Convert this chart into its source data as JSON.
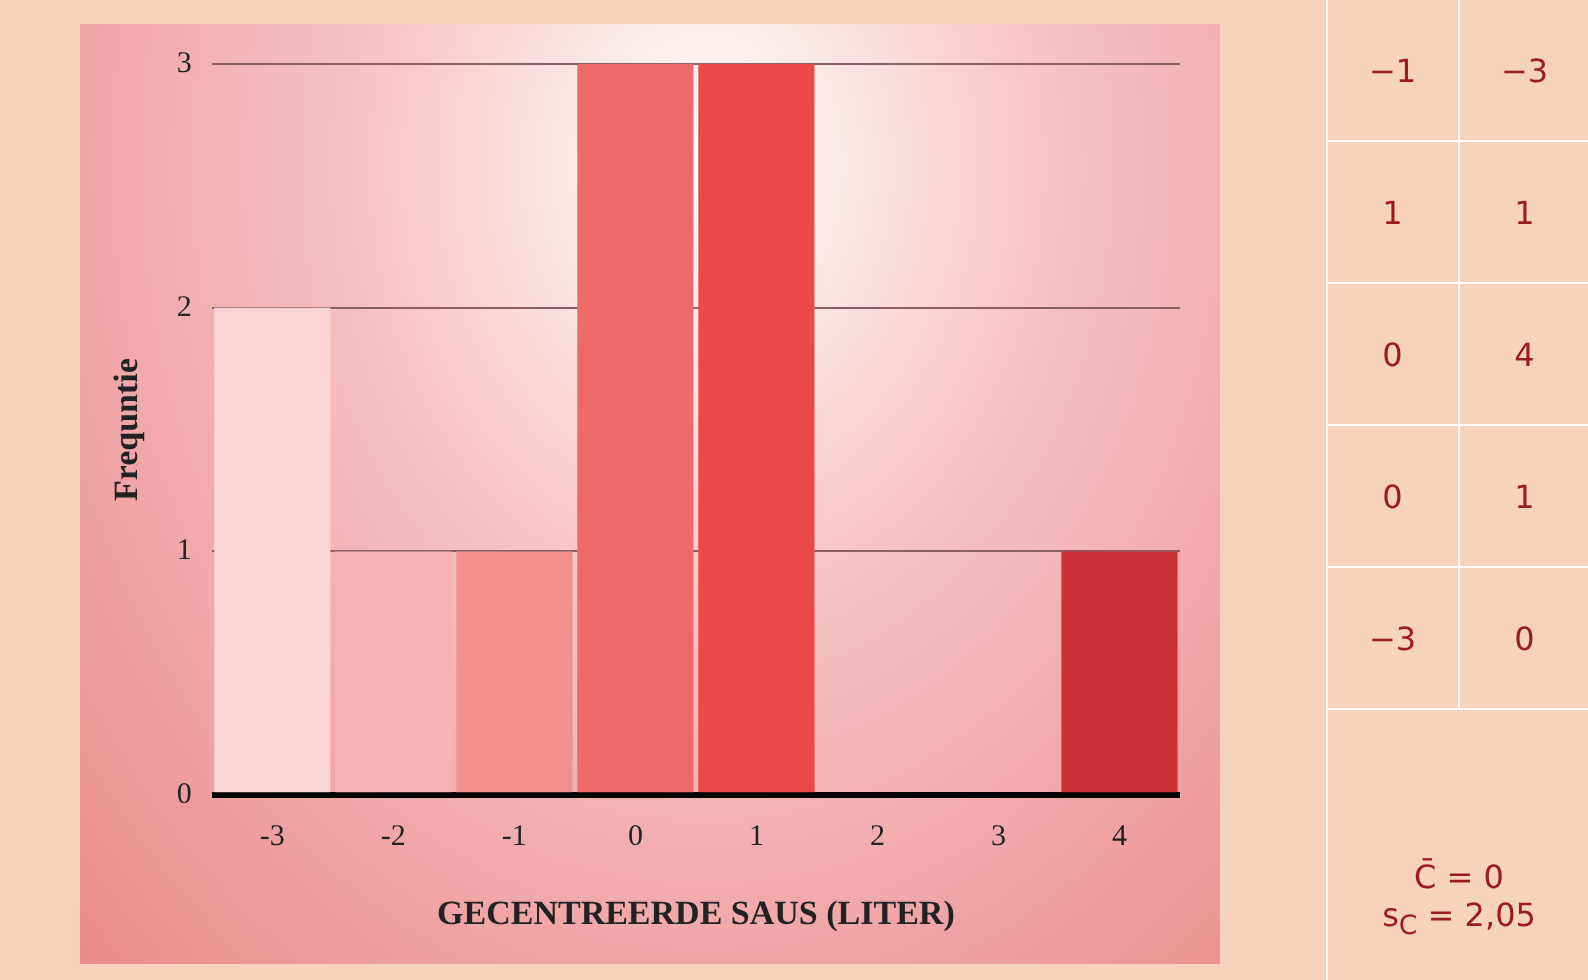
{
  "chart_data": [
    {
      "type": "bar",
      "xlabel": "GECENTREERDE SAUS (LITER)",
      "ylabel": "Frequntie",
      "categories": [
        "-3",
        "-2",
        "-1",
        "0",
        "1",
        "2",
        "3",
        "4"
      ],
      "values": [
        2,
        1,
        1,
        3,
        3,
        0,
        0,
        1
      ],
      "colors": [
        "#fad4d4",
        "#f5b3b3",
        "#f29090",
        "#ee6a6a",
        "#eb4848",
        "#f3a0a0",
        "#f3a0a0",
        "#cc3138"
      ],
      "ylim": [
        0,
        3
      ],
      "yticks": [
        0,
        1,
        2,
        3
      ],
      "grid": "y"
    },
    {
      "type": "other",
      "annotations": [
        "−1",
        "−3",
        "1",
        "1",
        "0",
        "4",
        "0",
        "1",
        "−3",
        "0",
        "C̄ = 0",
        "s$_{C}$ = 2,05"
      ]
    }
  ]
}
